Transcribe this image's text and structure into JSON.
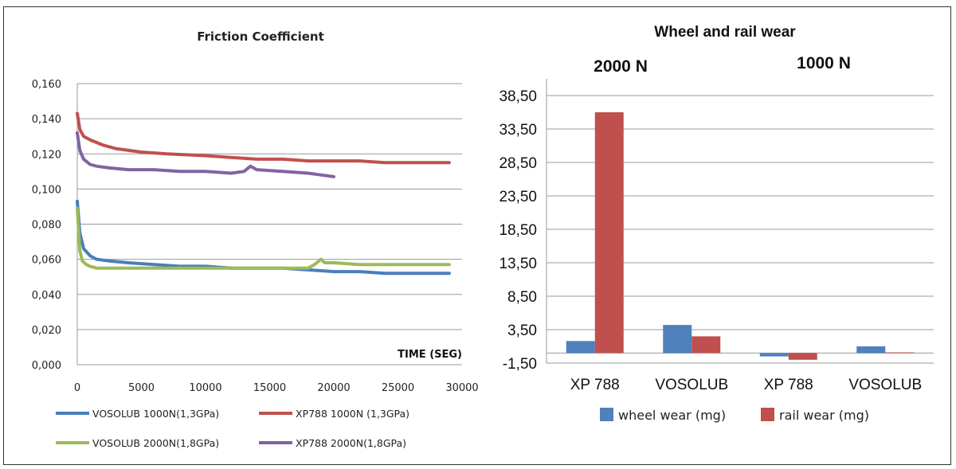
{
  "chart_data": [
    {
      "type": "line",
      "title": "Friction Coefficient",
      "xlabel": "TIME (SEG)",
      "ylabel": "",
      "xlim": [
        0,
        30000
      ],
      "ylim": [
        0,
        0.16
      ],
      "x_ticks": [
        "0",
        "5000",
        "10000",
        "15000",
        "20000",
        "25000",
        "30000"
      ],
      "y_ticks": [
        "0,000",
        "0,020",
        "0,040",
        "0,060",
        "0,080",
        "0,100",
        "0,120",
        "0,140",
        "0,160"
      ],
      "grid": "horizontal",
      "legend": "bottom",
      "series": [
        {
          "name": "VOSOLUB 1000N(1,3GPa)",
          "color": "#4a7ebb",
          "x": [
            0,
            200,
            500,
            1000,
            1500,
            2500,
            4000,
            6000,
            8000,
            10000,
            12000,
            14000,
            16000,
            18000,
            20000,
            22000,
            24000,
            26000,
            29000
          ],
          "y": [
            0.093,
            0.075,
            0.066,
            0.062,
            0.06,
            0.059,
            0.058,
            0.057,
            0.056,
            0.056,
            0.055,
            0.055,
            0.055,
            0.054,
            0.053,
            0.053,
            0.052,
            0.052,
            0.052
          ]
        },
        {
          "name": "XP788 1000N  (1,3GPa)",
          "color": "#c0504d",
          "x": [
            0,
            200,
            500,
            1000,
            2000,
            3000,
            5000,
            7000,
            10000,
            12000,
            14000,
            16000,
            18000,
            20000,
            22000,
            24000,
            26000,
            29000
          ],
          "y": [
            0.143,
            0.134,
            0.13,
            0.128,
            0.125,
            0.123,
            0.121,
            0.12,
            0.119,
            0.118,
            0.117,
            0.117,
            0.116,
            0.116,
            0.116,
            0.115,
            0.115,
            0.115
          ]
        },
        {
          "name": "VOSOLUB 2000N(1,8GPa)",
          "color": "#9bbb59",
          "x": [
            0,
            200,
            400,
            700,
            1000,
            1500,
            2500,
            4000,
            6000,
            8000,
            10000,
            12000,
            14000,
            16000,
            18000,
            18500,
            19000,
            19300,
            20000,
            22000,
            25000,
            29000
          ],
          "y": [
            0.089,
            0.065,
            0.059,
            0.057,
            0.056,
            0.055,
            0.055,
            0.055,
            0.055,
            0.055,
            0.055,
            0.055,
            0.055,
            0.055,
            0.055,
            0.057,
            0.06,
            0.058,
            0.058,
            0.057,
            0.057,
            0.057
          ]
        },
        {
          "name": "XP788  2000N(1,8GPa)",
          "color": "#8064a2",
          "x": [
            0,
            200,
            500,
            1000,
            1500,
            2500,
            4000,
            6000,
            8000,
            10000,
            12000,
            13000,
            13500,
            14000,
            16000,
            18000,
            19000,
            20000
          ],
          "y": [
            0.132,
            0.122,
            0.117,
            0.114,
            0.113,
            0.112,
            0.111,
            0.111,
            0.11,
            0.11,
            0.109,
            0.11,
            0.113,
            0.111,
            0.11,
            0.109,
            0.108,
            0.107
          ]
        }
      ]
    },
    {
      "type": "bar",
      "title": "Wheel and rail wear",
      "group_labels": [
        "2000 N",
        "1000 N"
      ],
      "categories": [
        "XP 788",
        "VOSOLUB",
        "XP 788",
        "VOSOLUB"
      ],
      "ylim": [
        -1.5,
        41
      ],
      "y_ticks": [
        "-1,50",
        "3,50",
        "8,50",
        "13,50",
        "18,50",
        "23,50",
        "28,50",
        "33,50",
        "38,50"
      ],
      "grid": "horizontal",
      "legend": "bottom",
      "series": [
        {
          "name": "wheel wear (mg)",
          "color": "#4f81bd",
          "values": [
            1.8,
            4.2,
            -0.5,
            1.0
          ]
        },
        {
          "name": "rail wear (mg)",
          "color": "#c0504d",
          "values": [
            36.0,
            2.5,
            -1.0,
            0.1
          ]
        }
      ]
    }
  ]
}
